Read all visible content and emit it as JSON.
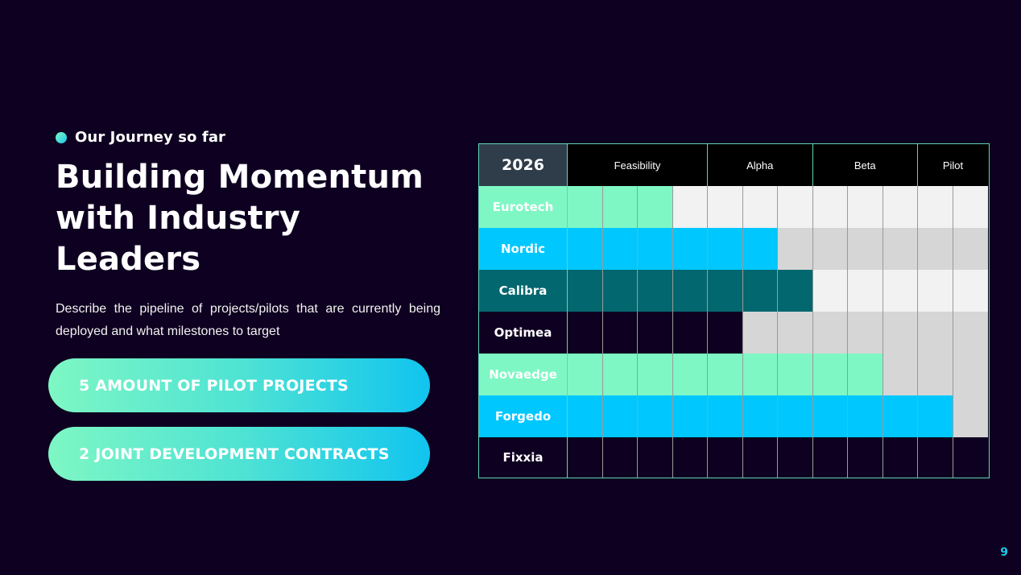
{
  "eyebrow": "Our Journey so far",
  "title": "Building Momentum with Industry Leaders",
  "description": "Describe the pipeline of projects/pilots that are currently being deployed and what milestones to target",
  "stats": [
    {
      "label": "5 AMOUNT OF PILOT PROJECTS"
    },
    {
      "label": "2 JOINT DEVELOPMENT CONTRACTS"
    }
  ],
  "page_number": "9",
  "gantt": {
    "year": "2026",
    "total_columns": 12,
    "phases": [
      {
        "label": "Feasibility",
        "columns": 4
      },
      {
        "label": "Alpha",
        "columns": 3
      },
      {
        "label": "Beta",
        "columns": 3
      },
      {
        "label": "Pilot",
        "columns": 2
      }
    ],
    "rows": [
      {
        "name": "Eurotech",
        "progress_columns": 3,
        "fill": "#7ef7c4",
        "label_bg": "#7ef7c4",
        "rest": "#f2f2f2"
      },
      {
        "name": "Nordic",
        "progress_columns": 6,
        "fill": "#00c8ff",
        "label_bg": "#00c8ff",
        "rest": "#d6d6d6"
      },
      {
        "name": "Calibra",
        "progress_columns": 7,
        "fill": "#03676f",
        "label_bg": "#03676f",
        "rest": "#f2f2f2"
      },
      {
        "name": "Optimea",
        "progress_columns": 5,
        "fill": "#0e0020",
        "label_bg": "#0e0020",
        "rest": "#d6d6d6"
      },
      {
        "name": "Novaedge",
        "progress_columns": 9,
        "fill": "#7ef7c4",
        "label_bg": "#7ef7c4",
        "rest": "#d6d6d6"
      },
      {
        "name": "Forgedo",
        "progress_columns": 11,
        "fill": "#00c8ff",
        "label_bg": "#00c8ff",
        "rest": "#d6d6d6"
      },
      {
        "name": "Fixxia",
        "progress_columns": 12,
        "fill": "#0e0020",
        "label_bg": "#0e0020",
        "rest": "#d6d6d6"
      }
    ]
  }
}
